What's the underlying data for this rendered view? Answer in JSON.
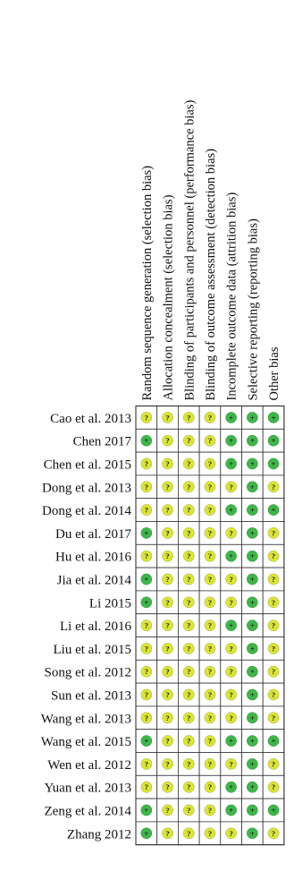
{
  "chart_data": {
    "type": "table",
    "columns": [
      "Random sequence generation (selection bias)",
      "Allocation concealment (selection bias)",
      "Blinding of participants and personnel (performance bias)",
      "Blinding of outcome assessment (detection bias)",
      "Incomplete outcome data (attrition bias)",
      "Selective reporting (reporting bias)",
      "Other bias"
    ],
    "rows": [
      "Cao et al. 2013",
      "Chen 2017",
      "Chen et al. 2015",
      "Dong et al. 2013",
      "Dong et al. 2014",
      "Du et al. 2017",
      "Hu et al. 2016",
      "Jia et al. 2014",
      "Li 2015",
      "Li et al. 2016",
      "Liu et al. 2015",
      "Song et al. 2012",
      "Sun et al. 2013",
      "Wang et al. 2013",
      "Wang et al. 2015",
      "Wen et al. 2012",
      "Yuan et al. 2013",
      "Zeng et al. 2014",
      "Zhang 2012"
    ],
    "symbols": {
      "+": {
        "glyph": "+",
        "color": "#3fb54a"
      },
      "?": {
        "glyph": "?",
        "color": "#d9e43a"
      }
    },
    "values": [
      [
        "?",
        "?",
        "?",
        "?",
        "+",
        "+",
        "+"
      ],
      [
        "+",
        "?",
        "?",
        "?",
        "+",
        "+",
        "+"
      ],
      [
        "?",
        "?",
        "?",
        "?",
        "+",
        "+",
        "+"
      ],
      [
        "?",
        "?",
        "?",
        "?",
        "?",
        "+",
        "?"
      ],
      [
        "?",
        "?",
        "?",
        "?",
        "+",
        "+",
        "+"
      ],
      [
        "+",
        "?",
        "?",
        "?",
        "?",
        "+",
        "?"
      ],
      [
        "?",
        "?",
        "?",
        "?",
        "+",
        "+",
        "?"
      ],
      [
        "+",
        "?",
        "?",
        "?",
        "?",
        "+",
        "?"
      ],
      [
        "+",
        "?",
        "?",
        "?",
        "?",
        "+",
        "?"
      ],
      [
        "?",
        "?",
        "?",
        "?",
        "+",
        "+",
        "?"
      ],
      [
        "?",
        "?",
        "?",
        "?",
        "?",
        "+",
        "?"
      ],
      [
        "?",
        "?",
        "?",
        "?",
        "?",
        "+",
        "?"
      ],
      [
        "?",
        "?",
        "?",
        "?",
        "?",
        "+",
        "?"
      ],
      [
        "?",
        "?",
        "?",
        "?",
        "?",
        "+",
        "?"
      ],
      [
        "+",
        "?",
        "?",
        "?",
        "+",
        "+",
        "+"
      ],
      [
        "?",
        "?",
        "?",
        "?",
        "?",
        "+",
        "?"
      ],
      [
        "?",
        "?",
        "?",
        "?",
        "+",
        "+",
        "?"
      ],
      [
        "+",
        "?",
        "?",
        "?",
        "+",
        "+",
        "+"
      ],
      [
        "+",
        "?",
        "?",
        "?",
        "?",
        "+",
        "?"
      ]
    ]
  }
}
